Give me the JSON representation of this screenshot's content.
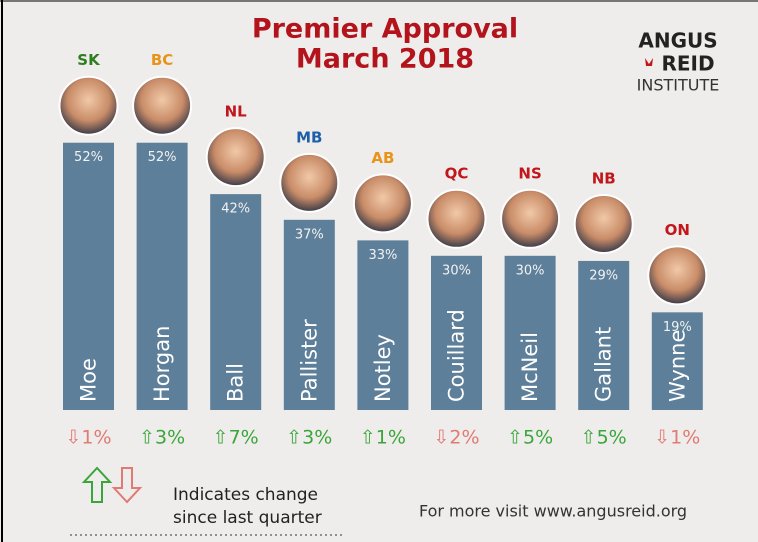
{
  "chart_data": {
    "type": "bar",
    "title_lines": [
      "Premier Approval",
      "March 2018"
    ],
    "logo_lines": [
      "ANGUS",
      "REID",
      "INSTITUTE"
    ],
    "categories": [
      "Moe",
      "Horgan",
      "Ball",
      "Pallister",
      "Notley",
      "Couillard",
      "McNeil",
      "Gallant",
      "Wynne"
    ],
    "provinces": [
      "SK",
      "BC",
      "NL",
      "MB",
      "AB",
      "QC",
      "NS",
      "NB",
      "ON"
    ],
    "province_colors": [
      "#2e7d1f",
      "#e8941a",
      "#c0161c",
      "#1f5fa8",
      "#e8941a",
      "#c0161c",
      "#c0161c",
      "#c0161c",
      "#c0161c"
    ],
    "values": [
      52,
      52,
      42,
      37,
      33,
      30,
      30,
      29,
      19
    ],
    "value_labels": [
      "52%",
      "52%",
      "42%",
      "37%",
      "33%",
      "30%",
      "30%",
      "29%",
      "19%"
    ],
    "color": "#5d7f99",
    "changes": [
      -1,
      3,
      7,
      3,
      1,
      -2,
      5,
      5,
      -1
    ],
    "change_labels": [
      "⇩1%",
      "⇧3%",
      "⇧7%",
      "⇧3%",
      "⇧1%",
      "⇩2%",
      "⇧5%",
      "⇧5%",
      "⇩1%"
    ],
    "up_color": "#3aa63a",
    "down_color": "#e07a72",
    "legend_lines": [
      "Indicates change",
      "since last quarter"
    ],
    "footer": "For more visit www.angusreid.org"
  }
}
